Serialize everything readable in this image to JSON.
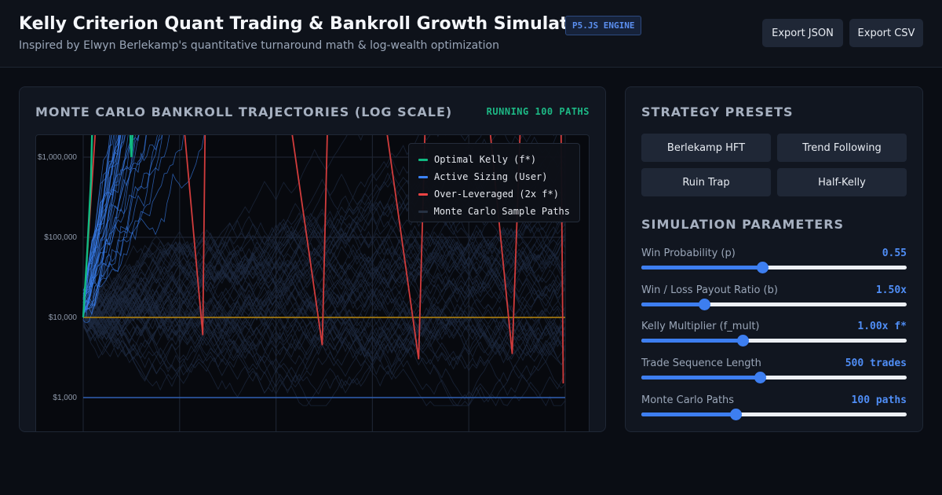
{
  "header": {
    "title": "Kelly Criterion Quant Trading & Bankroll Growth Simulator",
    "badge": "P5.JS ENGINE",
    "subtitle": "Inspired by Elwyn Berlekamp's quantitative turnaround math & log-wealth optimization",
    "export_json_label": "Export JSON",
    "export_csv_label": "Export CSV"
  },
  "chart_panel": {
    "title": "MONTE CARLO BANKROLL TRAJECTORIES (LOG SCALE)",
    "status": "RUNNING 100 PATHS"
  },
  "chart_data": {
    "type": "line",
    "title": "MONTE CARLO BANKROLL TRAJECTORIES (LOG SCALE)",
    "y_scale": "log",
    "y_ticks": [
      {
        "value": 1000000,
        "label": "$1,000,000"
      },
      {
        "value": 100000,
        "label": "$100,000"
      },
      {
        "value": 10000,
        "label": "$10,000"
      },
      {
        "value": 1000,
        "label": "$1,000"
      }
    ],
    "x_range": [
      0,
      500
    ],
    "grid": true,
    "legend_position": "top-right",
    "legend": [
      {
        "label": "Optimal Kelly (f*)",
        "color": "#10b981"
      },
      {
        "label": "Active Sizing (User)",
        "color": "#3b82f6"
      },
      {
        "label": "Over-Leveraged (2x f*)",
        "color": "#ef4444"
      },
      {
        "label": "Monte Carlo Sample Paths",
        "color": "#263142"
      }
    ],
    "reference_lines": [
      {
        "name": "starting-bankroll-line",
        "value": 10000,
        "color": "#b8860b"
      },
      {
        "name": "ruin-floor-line",
        "value": 1000,
        "color": "#2f5fb0"
      }
    ],
    "series": [
      {
        "key": "over_leveraged",
        "color": "#d23c3c",
        "points": [
          [
            0,
            10000
          ],
          [
            20,
            50000000
          ],
          [
            48,
            4000000000
          ],
          [
            50,
            2000000000
          ],
          [
            100,
            10000000
          ],
          [
            124,
            6000
          ],
          [
            128,
            100000000
          ],
          [
            200,
            50000000
          ],
          [
            248,
            4500
          ],
          [
            256,
            50000000
          ],
          [
            300,
            40000000
          ],
          [
            348,
            3000
          ],
          [
            360,
            500000000
          ],
          [
            400,
            1000000000
          ],
          [
            445,
            3500
          ],
          [
            460,
            400000000
          ],
          [
            495,
            20000000
          ],
          [
            498,
            1500
          ]
        ]
      },
      {
        "key": "optimal_kelly",
        "color": "#10b981",
        "points": [
          [
            0,
            10000
          ],
          [
            4,
            60000
          ],
          [
            8,
            500000
          ],
          [
            10,
            5000000
          ],
          [
            14,
            50000000
          ],
          [
            48,
            900000000
          ],
          [
            49,
            1500000
          ],
          [
            50,
            1000000
          ],
          [
            52,
            3000000
          ],
          [
            60,
            100000000
          ]
        ]
      }
    ]
  },
  "presets": {
    "title": "STRATEGY PRESETS",
    "items": [
      "Berlekamp HFT",
      "Trend Following",
      "Ruin Trap",
      "Half-Kelly"
    ]
  },
  "parameters": {
    "title": "SIMULATION PARAMETERS",
    "items": [
      {
        "label": "Win Probability (p)",
        "value_text": "0.55",
        "fraction": 0.455
      },
      {
        "label": "Win / Loss Payout Ratio (b)",
        "value_text": "1.50x",
        "fraction": 0.236
      },
      {
        "label": "Kelly Multiplier (f_mult)",
        "value_text": "1.00x f*",
        "fraction": 0.382
      },
      {
        "label": "Trade Sequence Length",
        "value_text": "500 trades",
        "fraction": 0.447
      },
      {
        "label": "Monte Carlo Paths",
        "value_text": "100 paths",
        "fraction": 0.355
      }
    ]
  }
}
